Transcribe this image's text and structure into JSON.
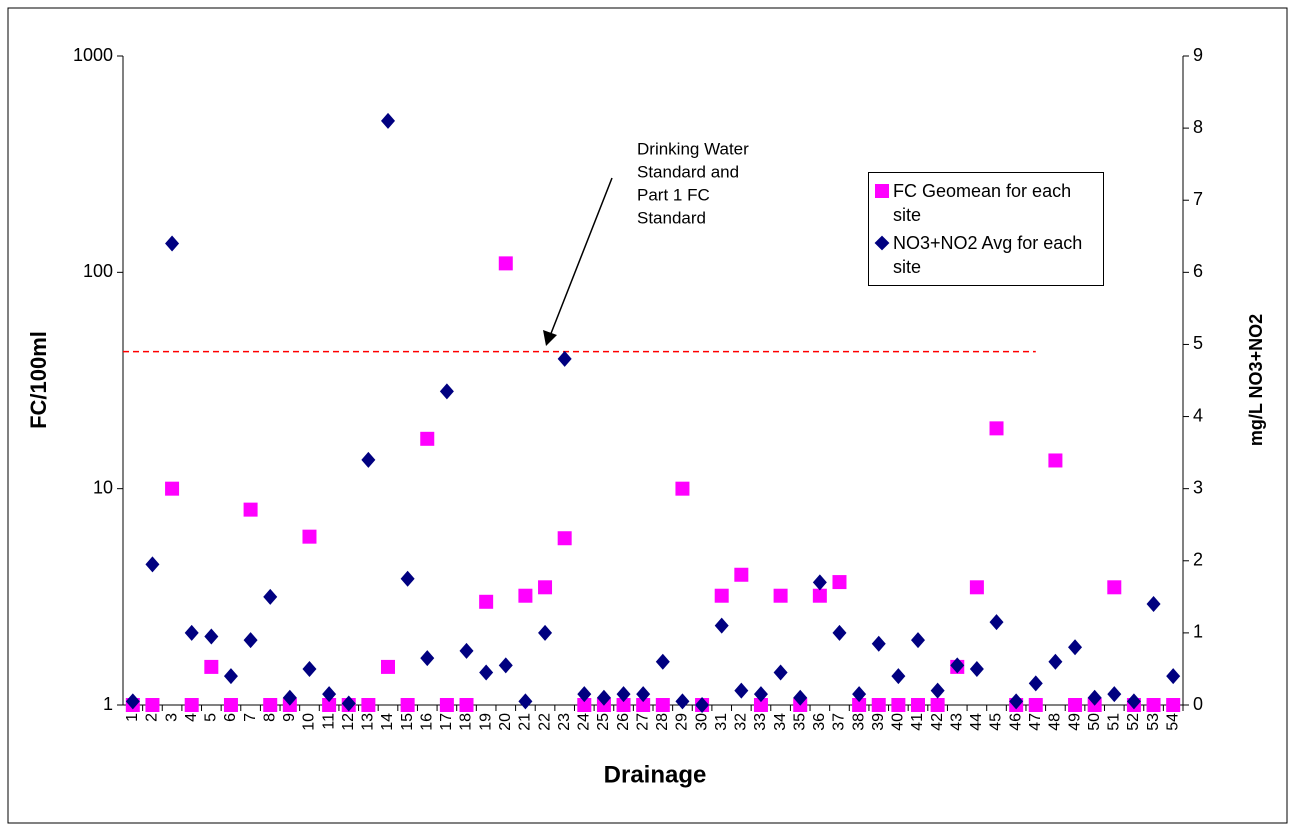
{
  "chart_data": {
    "type": "scatter",
    "x_label": "Drainage",
    "y_label": "FC/100ml",
    "y2_label": "mg/L NO3+NO2",
    "categories": [
      "1",
      "2",
      "3",
      "4",
      "5",
      "6",
      "7",
      "8",
      "9",
      "10",
      "11",
      "12",
      "13",
      "14",
      "15",
      "16",
      "17",
      "18",
      "19",
      "20",
      "21",
      "22",
      "23",
      "24",
      "25",
      "26",
      "27",
      "28",
      "29",
      "30",
      "31",
      "32",
      "33",
      "34",
      "35",
      "36",
      "37",
      "38",
      "39",
      "40",
      "41",
      "42",
      "43",
      "44",
      "45",
      "46",
      "47",
      "48",
      "49",
      "50",
      "51",
      "52",
      "53",
      "54"
    ],
    "series": [
      {
        "name": "FC Geomean for each site",
        "color": "#ff00ff",
        "marker": "square",
        "axis": "y",
        "values": [
          1,
          1,
          10,
          1,
          1.5,
          1,
          8,
          1,
          1,
          6,
          1,
          1,
          1,
          1.5,
          1,
          17,
          1,
          1,
          3,
          110,
          3.2,
          3.5,
          5.9,
          1,
          1,
          1,
          1,
          1,
          10,
          1,
          3.2,
          4,
          1,
          3.2,
          1,
          3.2,
          3.7,
          1,
          1,
          1,
          1,
          1,
          1.5,
          3.5,
          19,
          1,
          1,
          13.5,
          1,
          1,
          3.5,
          1,
          1,
          1
        ]
      },
      {
        "name": "NO3+NO2 Avg for each site",
        "color": "#000080",
        "marker": "diamond",
        "axis": "y2",
        "values": [
          0.05,
          1.95,
          6.4,
          1,
          0.95,
          0.4,
          0.9,
          1.5,
          0.1,
          0.5,
          0.15,
          0.02,
          3.4,
          8.1,
          1.75,
          0.65,
          4.35,
          0.75,
          0.45,
          0.55,
          0.05,
          1,
          4.8,
          0.15,
          0.1,
          0.15,
          0.15,
          0.6,
          0.05,
          0,
          1.1,
          0.2,
          0.15,
          0.45,
          0.1,
          1.7,
          1,
          0.15,
          0.85,
          0.4,
          0.9,
          0.2,
          0.55,
          0.5,
          1.15,
          0.05,
          0.3,
          0.6,
          0.8,
          0.1,
          0.15,
          0.05,
          1.4,
          0.4
        ]
      }
    ],
    "ylim": [
      1,
      1000
    ],
    "yticks": [
      1,
      10,
      100,
      1000
    ],
    "log_scale": "y",
    "y2lim": [
      0,
      9
    ],
    "y2ticks": [
      0,
      1,
      2,
      3,
      4,
      5,
      6,
      7,
      8,
      9
    ],
    "reference_line": {
      "value": 43,
      "axis": "y",
      "color": "#ff0000"
    },
    "annotation": [
      "Drinking Water",
      "Standard and",
      "Part 1 FC",
      "Standard"
    ],
    "legend": "upper right"
  }
}
